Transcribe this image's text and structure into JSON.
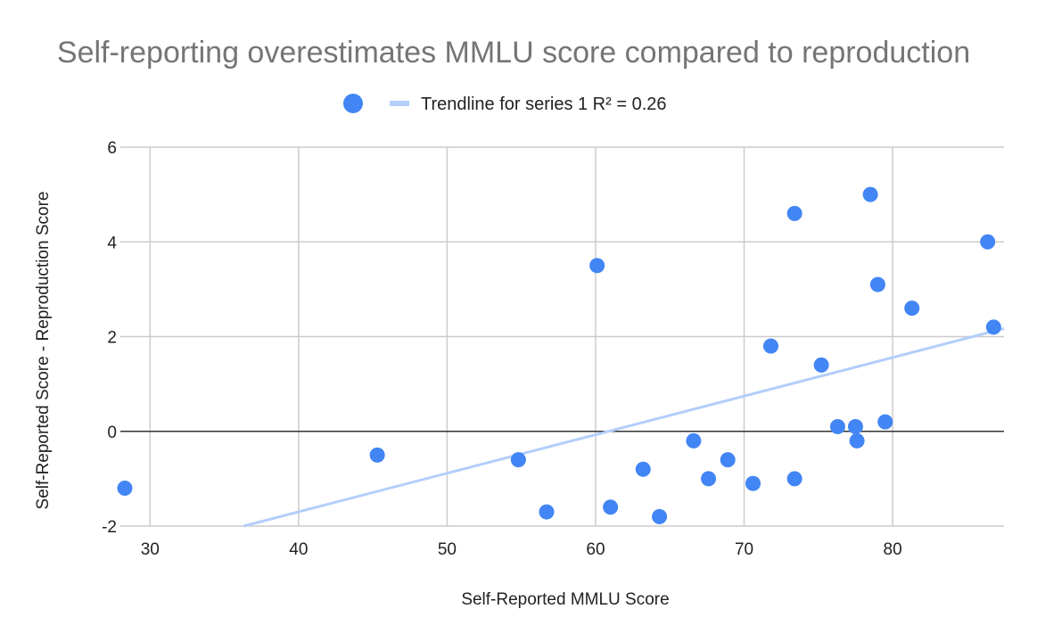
{
  "chart_data": {
    "type": "scatter",
    "title": "Self-reporting overestimates MMLU score compared to reproduction",
    "xlabel": "Self-Reported MMLU Score",
    "ylabel": "Self-Reported Score - Reproduction Score",
    "xlim": [
      28,
      87.5
    ],
    "ylim": [
      -2,
      6
    ],
    "x_ticks": [
      30,
      40,
      50,
      60,
      70,
      80
    ],
    "y_ticks": [
      -2,
      0,
      2,
      4,
      6
    ],
    "grid": true,
    "legend_position": "top-center",
    "colors": {
      "points": "#4285f4",
      "trendline": "#b3cefb",
      "zero_line": "#333333",
      "grid": "#cccccc"
    },
    "series": [
      {
        "x": [
          28.3,
          45.3,
          54.8,
          56.7,
          60.1,
          61.0,
          63.2,
          64.3,
          66.6,
          67.6,
          68.9,
          70.6,
          71.8,
          73.4,
          73.4,
          75.2,
          76.3,
          77.5,
          77.6,
          78.5,
          79.0,
          79.5,
          81.3,
          86.4,
          86.8
        ],
        "y": [
          -1.2,
          -0.5,
          -0.6,
          -1.7,
          3.5,
          -1.6,
          -0.8,
          -1.8,
          -0.2,
          -1.0,
          -0.6,
          -1.1,
          1.8,
          4.6,
          -1.0,
          1.4,
          0.1,
          0.1,
          -0.2,
          5.0,
          3.1,
          0.2,
          2.6,
          4.0,
          2.2
        ]
      }
    ],
    "trendline": {
      "name": "Trendline for series 1 R² = 0.26",
      "x": [
        36.3,
        87.5
      ],
      "y": [
        -2.0,
        2.17
      ]
    }
  }
}
